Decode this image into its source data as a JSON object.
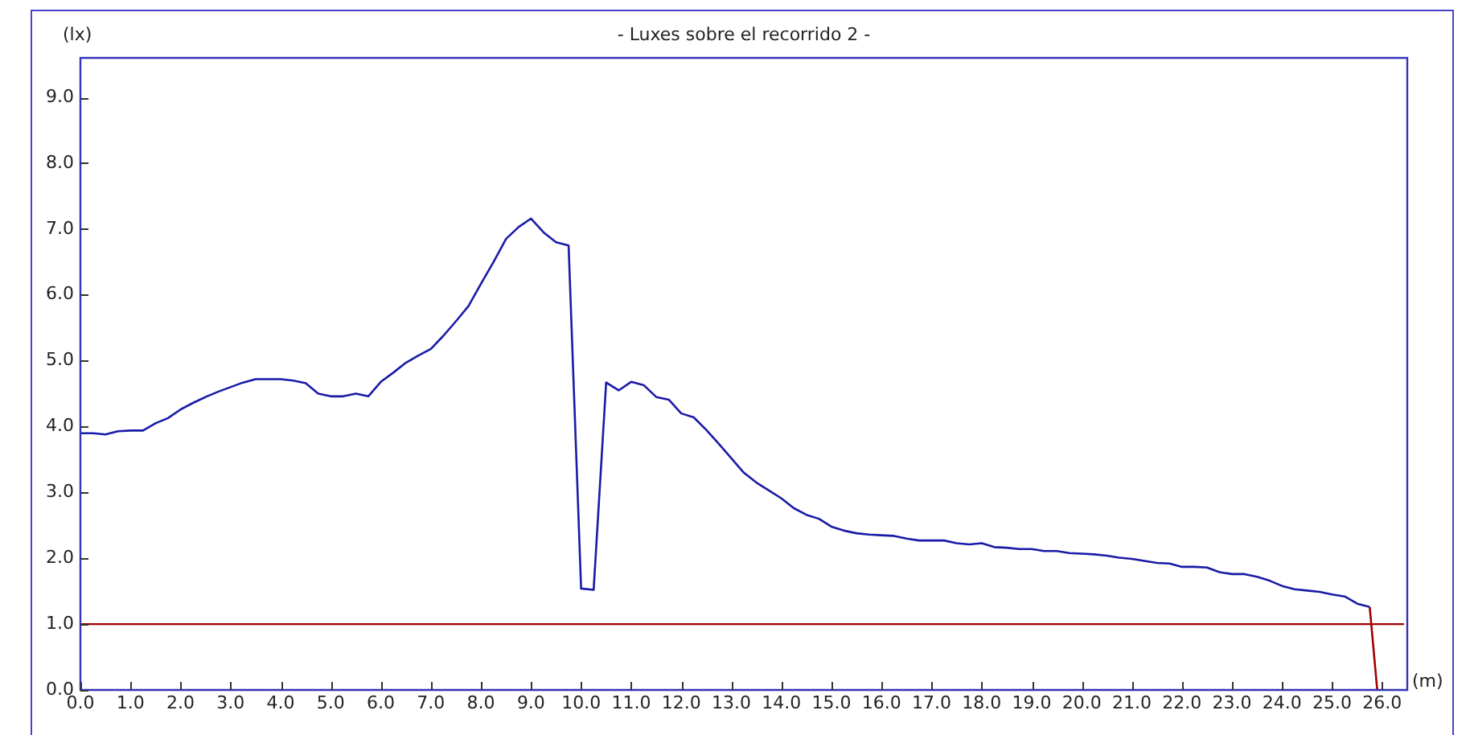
{
  "chart_data": {
    "type": "line",
    "title": "- Luxes sobre el recorrido 2 -",
    "xlabel": "(m)",
    "ylabel": "(lx)",
    "x": [
      0,
      0.25,
      0.5,
      0.75,
      1,
      1.25,
      1.5,
      1.75,
      2,
      2.25,
      2.5,
      2.75,
      3,
      3.25,
      3.5,
      3.75,
      4,
      4.25,
      4.5,
      4.75,
      5,
      5.25,
      5.5,
      5.75,
      6,
      6.25,
      6.5,
      6.75,
      7,
      7.25,
      7.5,
      7.75,
      8,
      8.25,
      8.5,
      8.75,
      9,
      9.25,
      9.5,
      9.75,
      10,
      10.25,
      10.5,
      10.75,
      11,
      11.25,
      11.5,
      11.75,
      12,
      12.25,
      12.5,
      12.75,
      13,
      13.25,
      13.5,
      13.75,
      14,
      14.25,
      14.5,
      14.75,
      15,
      15.25,
      15.5,
      15.75,
      16,
      16.25,
      16.5,
      16.75,
      17,
      17.25,
      17.5,
      17.75,
      18,
      18.25,
      18.5,
      18.75,
      19,
      19.25,
      19.5,
      19.75,
      20,
      20.25,
      20.5,
      20.75,
      21,
      21.25,
      21.5,
      21.75,
      22,
      22.25,
      22.5,
      22.75,
      23,
      23.25,
      23.5,
      23.75,
      24,
      24.25,
      24.5,
      24.75,
      25,
      25.25,
      25.5,
      25.75
    ],
    "series": [
      {
        "color": "#1a1aa8",
        "values": [
          3.9,
          3.9,
          3.88,
          3.93,
          3.94,
          3.94,
          4.05,
          4.13,
          4.26,
          4.36,
          4.45,
          4.53,
          4.6,
          4.67,
          4.72,
          4.72,
          4.72,
          4.7,
          4.66,
          4.5,
          4.46,
          4.46,
          4.5,
          4.46,
          4.68,
          4.82,
          4.97,
          5.08,
          5.18,
          5.38,
          5.6,
          5.83,
          6.17,
          6.5,
          6.85,
          7.03,
          7.16,
          6.95,
          6.8,
          6.75,
          1.54,
          1.52,
          4.67,
          4.55,
          4.68,
          4.63,
          4.45,
          4.41,
          4.2,
          4.14,
          3.95,
          3.74,
          3.52,
          3.3,
          3.15,
          3.03,
          2.91,
          2.76,
          2.66,
          2.6,
          2.48,
          2.42,
          2.38,
          2.36,
          2.35,
          2.34,
          2.3,
          2.27,
          2.27,
          2.27,
          2.23,
          2.21,
          2.23,
          2.17,
          2.16,
          2.14,
          2.14,
          2.11,
          2.11,
          2.08,
          2.07,
          2.06,
          2.04,
          2.01,
          1.99,
          1.96,
          1.93,
          1.92,
          1.87,
          1.87,
          1.86,
          1.79,
          1.76,
          1.76,
          1.72,
          1.66,
          1.58,
          1.53,
          1.51,
          1.49,
          1.45,
          1.42,
          1.31,
          1.26
        ]
      },
      {
        "color": "#a00000",
        "x": [
          25.75,
          25.9
        ],
        "values": [
          1.26,
          0
        ]
      }
    ],
    "ref_lines": [
      {
        "axis": "y",
        "value": 1,
        "color": "#a00000"
      }
    ],
    "xlim": [
      0,
      26.5
    ],
    "ylim": [
      0,
      9.6
    ],
    "xticks": [
      {
        "value": 0,
        "label": "0.0"
      },
      {
        "value": 1,
        "label": "1.0"
      },
      {
        "value": 2,
        "label": "2.0"
      },
      {
        "value": 3,
        "label": "3.0"
      },
      {
        "value": 4,
        "label": "4.0"
      },
      {
        "value": 5,
        "label": "5.0"
      },
      {
        "value": 6,
        "label": "6.0"
      },
      {
        "value": 7,
        "label": "7.0"
      },
      {
        "value": 8,
        "label": "8.0"
      },
      {
        "value": 9,
        "label": "9.0"
      },
      {
        "value": 10,
        "label": "10.0"
      },
      {
        "value": 11,
        "label": "11.0"
      },
      {
        "value": 12,
        "label": "12.0"
      },
      {
        "value": 13,
        "label": "13.0"
      },
      {
        "value": 14,
        "label": "14.0"
      },
      {
        "value": 15,
        "label": "15.0"
      },
      {
        "value": 16,
        "label": "16.0"
      },
      {
        "value": 17,
        "label": "17.0"
      },
      {
        "value": 18,
        "label": "18.0"
      },
      {
        "value": 19,
        "label": "19.0"
      },
      {
        "value": 20,
        "label": "20.0"
      },
      {
        "value": 21,
        "label": "21.0"
      },
      {
        "value": 22,
        "label": "22.0"
      },
      {
        "value": 23,
        "label": "23.0"
      },
      {
        "value": 24,
        "label": "24.0"
      },
      {
        "value": 25,
        "label": "25.0"
      },
      {
        "value": 26,
        "label": "26.0"
      }
    ],
    "yticks": [
      {
        "value": 0,
        "label": "0.0"
      },
      {
        "value": 1,
        "label": "1.0"
      },
      {
        "value": 2,
        "label": "2.0"
      },
      {
        "value": 3,
        "label": "3.0"
      },
      {
        "value": 4,
        "label": "4.0"
      },
      {
        "value": 5,
        "label": "5.0"
      },
      {
        "value": 6,
        "label": "6.0"
      },
      {
        "value": 7,
        "label": "7.0"
      },
      {
        "value": 8,
        "label": "8.0"
      },
      {
        "value": 9,
        "label": "9.0"
      }
    ],
    "grid": false,
    "legend": false,
    "marker": "none",
    "line_style": "solid"
  }
}
